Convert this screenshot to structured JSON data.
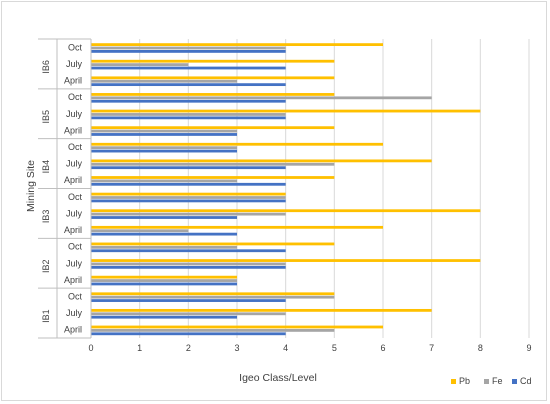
{
  "chart_data": {
    "type": "bar",
    "orientation": "horizontal",
    "xlabel": "Igeo Class/Level",
    "ylabel": "Mining Site",
    "xlim": [
      0,
      9
    ],
    "xticks": [
      0,
      1,
      2,
      3,
      4,
      5,
      6,
      7,
      8,
      9
    ],
    "grid": "vertical",
    "legend_position": "bottom-right",
    "groups": [
      {
        "name": "IB1",
        "categories": [
          "April",
          "July",
          "Oct"
        ]
      },
      {
        "name": "IB2",
        "categories": [
          "April",
          "July",
          "Oct"
        ]
      },
      {
        "name": "IB3",
        "categories": [
          "April",
          "July",
          "Oct"
        ]
      },
      {
        "name": "IB4",
        "categories": [
          "April",
          "July",
          "Oct"
        ]
      },
      {
        "name": "IB5",
        "categories": [
          "April",
          "July",
          "Oct"
        ]
      },
      {
        "name": "IB6",
        "categories": [
          "April",
          "July",
          "Oct"
        ]
      }
    ],
    "series": [
      {
        "name": "Pb",
        "color": "#FFC000",
        "values": [
          [
            6,
            7,
            5
          ],
          [
            3,
            8,
            5
          ],
          [
            6,
            8,
            4
          ],
          [
            5,
            7,
            6
          ],
          [
            5,
            8,
            5
          ],
          [
            5,
            5,
            6
          ]
        ]
      },
      {
        "name": "Fe",
        "color": "#A5A5A5",
        "values": [
          [
            5,
            4,
            5
          ],
          [
            3,
            4,
            3
          ],
          [
            2,
            4,
            4
          ],
          [
            3,
            5,
            3
          ],
          [
            3,
            4,
            7
          ],
          [
            3,
            2,
            4
          ]
        ]
      },
      {
        "name": "Cd",
        "color": "#4472C4",
        "values": [
          [
            4,
            3,
            4
          ],
          [
            3,
            4,
            4
          ],
          [
            3,
            3,
            4
          ],
          [
            4,
            4,
            3
          ],
          [
            3,
            4,
            4
          ],
          [
            4,
            4,
            4
          ]
        ]
      }
    ]
  }
}
